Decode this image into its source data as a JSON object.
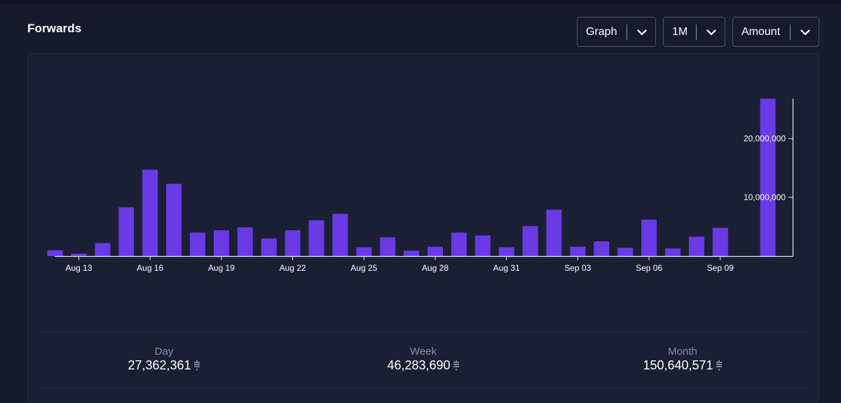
{
  "panel": {
    "title": "Forwards"
  },
  "controls": {
    "view": {
      "selected": "Graph"
    },
    "range": {
      "selected": "1M"
    },
    "metric": {
      "selected": "Amount"
    }
  },
  "stats": {
    "day": {
      "label": "Day",
      "value": "27,362,361",
      "unit_icon": "sats-icon"
    },
    "week": {
      "label": "Week",
      "value": "46,283,690",
      "unit_icon": "sats-icon"
    },
    "month": {
      "label": "Month",
      "value": "150,640,571",
      "unit_icon": "sats-icon"
    }
  },
  "colors": {
    "background": "#161a2b",
    "card": "#1b1f33",
    "bar": "#6a3ae6",
    "axis": "#e6e6ee",
    "muted_text": "#8a8ea3"
  },
  "chart_data": {
    "type": "bar",
    "x": [
      "Aug 12",
      "Aug 13",
      "Aug 14",
      "Aug 15",
      "Aug 16",
      "Aug 17",
      "Aug 18",
      "Aug 19",
      "Aug 20",
      "Aug 21",
      "Aug 22",
      "Aug 23",
      "Aug 24",
      "Aug 25",
      "Aug 26",
      "Aug 27",
      "Aug 28",
      "Aug 29",
      "Aug 30",
      "Aug 31",
      "Sep 01",
      "Sep 02",
      "Sep 03",
      "Sep 04",
      "Sep 05",
      "Sep 06",
      "Sep 07",
      "Sep 08",
      "Sep 09",
      "Sep 10",
      "Sep 11"
    ],
    "values": [
      1000000,
      400000,
      2200000,
      8300000,
      14700000,
      12300000,
      4000000,
      4400000,
      4900000,
      3000000,
      4400000,
      6100000,
      7200000,
      1500000,
      3200000,
      900000,
      1600000,
      4000000,
      3500000,
      1500000,
      5100000,
      7900000,
      1600000,
      2500000,
      1400000,
      6200000,
      1300000,
      3300000,
      4800000,
      0,
      26800000
    ],
    "x_ticks": [
      "Aug 13",
      "Aug 16",
      "Aug 19",
      "Aug 22",
      "Aug 25",
      "Aug 28",
      "Aug 31",
      "Sep 03",
      "Sep 06",
      "Sep 09"
    ],
    "y_ticks": [
      10000000,
      20000000
    ],
    "y_tick_labels": [
      "10,000,000",
      "20,000,000"
    ],
    "ylim": [
      0,
      26800000
    ],
    "y_axis_side": "right",
    "grid": false,
    "legend": "none",
    "title": "",
    "xlabel": "",
    "ylabel": ""
  }
}
